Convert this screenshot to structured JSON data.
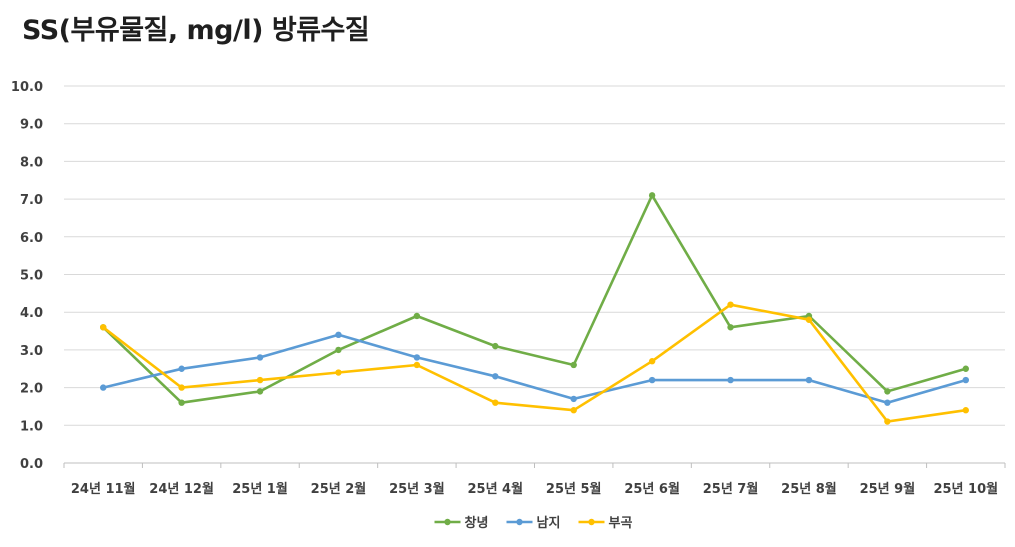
{
  "chart_data": {
    "type": "line",
    "title": "SS(부유물질, mg/l) 방류수질",
    "xlabel": "",
    "ylabel": "",
    "ylim": [
      0,
      10
    ],
    "y_ticks": [
      "0.0",
      "1.0",
      "2.0",
      "3.0",
      "4.0",
      "5.0",
      "6.0",
      "7.0",
      "8.0",
      "9.0",
      "10.0"
    ],
    "grid": true,
    "legend_position": "bottom",
    "categories": [
      "24년 11월",
      "24년 12월",
      "25년 1월",
      "25년 2월",
      "25년 3월",
      "25년 4월",
      "25년 5월",
      "25년 6월",
      "25년 7월",
      "25년 8월",
      "25년 9월",
      "25년 10월"
    ],
    "series": [
      {
        "name": "창녕",
        "color": "#70ad47",
        "values": [
          3.6,
          1.6,
          1.9,
          3.0,
          3.9,
          3.1,
          2.6,
          7.1,
          3.6,
          3.9,
          1.9,
          2.5
        ]
      },
      {
        "name": "남지",
        "color": "#5b9bd5",
        "values": [
          2.0,
          2.5,
          2.8,
          3.4,
          2.8,
          2.3,
          1.7,
          2.2,
          2.2,
          2.2,
          1.6,
          2.2
        ]
      },
      {
        "name": "부곡",
        "color": "#ffc000",
        "values": [
          3.6,
          2.0,
          2.2,
          2.4,
          2.6,
          1.6,
          1.4,
          2.7,
          4.2,
          3.8,
          1.1,
          1.4
        ]
      }
    ]
  }
}
